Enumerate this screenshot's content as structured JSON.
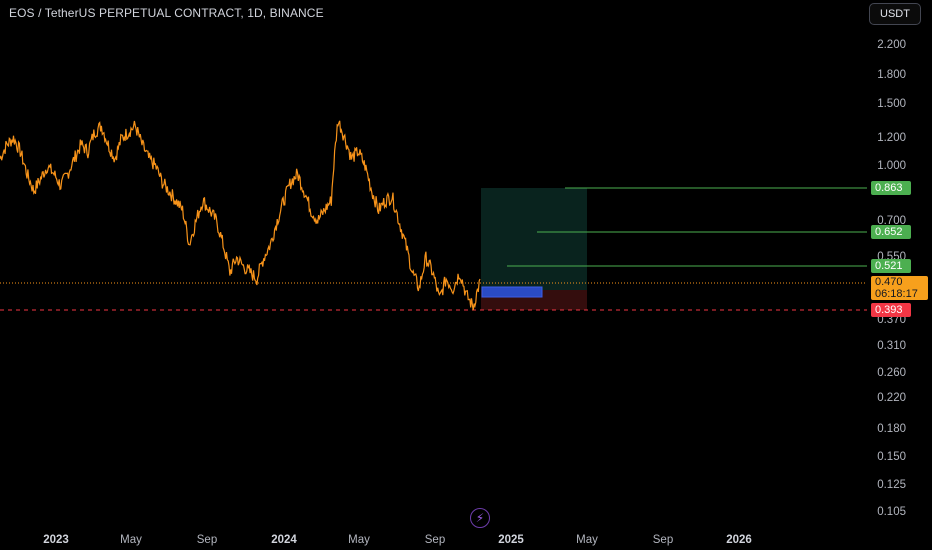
{
  "header": {
    "symbol_title": "EOS / TetherUS PERPETUAL CONTRACT, 1D, BINANCE",
    "currency_button": "USDT"
  },
  "colors": {
    "price_line": "#f7931a",
    "target": "#4caf50",
    "stop": "#f23645",
    "profit_zone": "#0d2620",
    "loss_zone": "#3a0f0f",
    "entry_box": "#2a4bc4"
  },
  "price_axis": {
    "scale": "log",
    "ticks": [
      "2.200",
      "1.800",
      "1.500",
      "1.200",
      "1.000",
      "0.700",
      "0.550",
      "0.370",
      "0.310",
      "0.260",
      "0.220",
      "0.180",
      "0.150",
      "0.125",
      "0.105"
    ]
  },
  "time_axis": {
    "ticks": [
      {
        "label": "2023",
        "year": true
      },
      {
        "label": "May",
        "year": false
      },
      {
        "label": "Sep",
        "year": false
      },
      {
        "label": "2024",
        "year": true
      },
      {
        "label": "May",
        "year": false
      },
      {
        "label": "Sep",
        "year": false
      },
      {
        "label": "2025",
        "year": true
      },
      {
        "label": "May",
        "year": false
      },
      {
        "label": "Sep",
        "year": false
      },
      {
        "label": "2026",
        "year": true
      }
    ]
  },
  "price_labels": {
    "tp1": "0.863",
    "tp2": "0.652",
    "tp3": "0.521",
    "stop": "0.393"
  },
  "current_price": {
    "value": "0.470",
    "countdown": "06:18:17"
  },
  "chart_data": {
    "type": "line",
    "title": "EOS / TetherUS PERPETUAL CONTRACT, 1D, BINANCE",
    "y_scale": "log",
    "ylim": [
      0.1,
      2.5
    ],
    "series": [
      {
        "values": [
          1.05,
          1.15,
          1.2,
          1.1,
          0.95,
          0.85,
          0.92,
          1.0,
          0.95,
          0.88,
          0.95,
          1.05,
          1.15,
          1.1,
          1.25,
          1.3,
          1.15,
          1.05,
          1.2,
          1.25,
          1.3,
          1.15,
          1.05,
          1.0,
          0.9,
          0.85,
          0.8,
          0.75,
          0.6,
          0.7,
          0.8,
          0.75,
          0.7,
          0.6,
          0.5,
          0.55,
          0.52,
          0.5,
          0.48,
          0.55,
          0.6,
          0.7,
          0.8,
          0.9,
          0.95,
          0.85,
          0.75,
          0.7,
          0.75,
          0.8,
          1.35,
          1.2,
          1.05,
          1.1,
          1.0,
          0.85,
          0.75,
          0.8,
          0.82,
          0.7,
          0.6,
          0.5,
          0.45,
          0.55,
          0.5,
          0.42,
          0.48,
          0.45,
          0.5,
          0.43,
          0.4,
          0.47
        ]
      }
    ],
    "annotations": [
      "0.863",
      "0.652",
      "0.521",
      "0.470",
      "0.393"
    ]
  }
}
